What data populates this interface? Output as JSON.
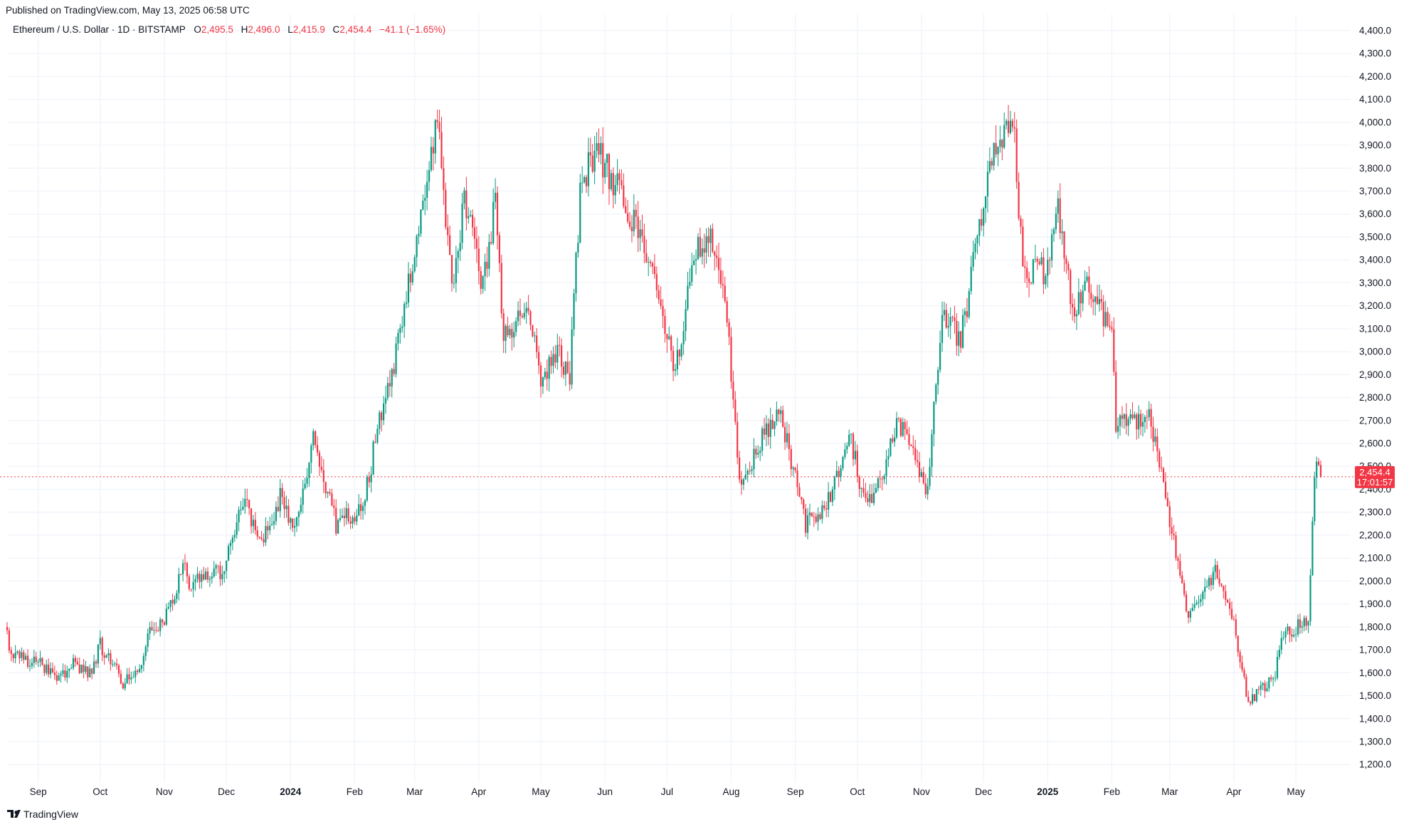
{
  "published": "Published on TradingView.com, May 13, 2025 06:58 UTC",
  "brand": "TradingView",
  "brand_icon": "tradingview-logo-icon",
  "colors": {
    "up": "#089981",
    "down": "#f23645",
    "grid": "#f0f3fa",
    "text": "#131722",
    "price_line": "#f23645"
  },
  "header": {
    "symbol": "Ethereum / U.S. Dollar · 1D · BITSTAMP",
    "o_label": "O",
    "o_value": "2,495.5",
    "h_label": "H",
    "h_value": "2,496.0",
    "l_label": "L",
    "l_value": "2,415.9",
    "c_label": "C",
    "c_value": "2,454.4",
    "change": "−41.1 (−1.65%)"
  },
  "price_badge": {
    "price": "2,454.4",
    "countdown": "17:01:57"
  },
  "chart_data": {
    "type": "candlestick",
    "symbol": "ETHUSD",
    "exchange": "BITSTAMP",
    "interval": "1D",
    "ylim": [
      1120,
      4440
    ],
    "yticks": [
      "1,200.0",
      "1,300.0",
      "1,400.0",
      "1,500.0",
      "1,600.0",
      "1,700.0",
      "1,800.0",
      "1,900.0",
      "2,000.0",
      "2,100.0",
      "2,200.0",
      "2,300.0",
      "2,400.0",
      "2,500.0",
      "2,600.0",
      "2,700.0",
      "2,800.0",
      "2,900.0",
      "3,000.0",
      "3,100.0",
      "3,200.0",
      "3,300.0",
      "3,400.0",
      "3,500.0",
      "3,600.0",
      "3,700.0",
      "3,800.0",
      "3,900.0",
      "4,000.0",
      "4,100.0",
      "4,200.0",
      "4,300.0",
      "4,400.0"
    ],
    "xticks": [
      {
        "label": "Sep",
        "date": "2023-09-01"
      },
      {
        "label": "Oct",
        "date": "2023-10-01"
      },
      {
        "label": "Nov",
        "date": "2023-11-01"
      },
      {
        "label": "Dec",
        "date": "2023-12-01"
      },
      {
        "label": "2024",
        "date": "2024-01-01",
        "bold": true
      },
      {
        "label": "Feb",
        "date": "2024-02-01"
      },
      {
        "label": "Mar",
        "date": "2024-03-01"
      },
      {
        "label": "Apr",
        "date": "2024-04-01"
      },
      {
        "label": "May",
        "date": "2024-05-01"
      },
      {
        "label": "Jun",
        "date": "2024-06-01"
      },
      {
        "label": "Jul",
        "date": "2024-07-01"
      },
      {
        "label": "Aug",
        "date": "2024-08-01"
      },
      {
        "label": "Sep",
        "date": "2024-09-01"
      },
      {
        "label": "Oct",
        "date": "2024-10-01"
      },
      {
        "label": "Nov",
        "date": "2024-11-01"
      },
      {
        "label": "Dec",
        "date": "2024-12-01"
      },
      {
        "label": "2025",
        "date": "2025-01-01",
        "bold": true
      },
      {
        "label": "Feb",
        "date": "2025-02-01"
      },
      {
        "label": "Mar",
        "date": "2025-03-01"
      },
      {
        "label": "Apr",
        "date": "2025-04-01"
      },
      {
        "label": "May",
        "date": "2025-05-01"
      }
    ],
    "last_price": 2454.4,
    "grid": true,
    "path_points": [
      [
        "2023-08-17",
        1800
      ],
      [
        "2023-08-18",
        1690
      ],
      [
        "2023-09-01",
        1640
      ],
      [
        "2023-09-11",
        1560
      ],
      [
        "2023-09-18",
        1640
      ],
      [
        "2023-09-26",
        1590
      ],
      [
        "2023-10-01",
        1720
      ],
      [
        "2023-10-12",
        1560
      ],
      [
        "2023-10-20",
        1620
      ],
      [
        "2023-10-24",
        1790
      ],
      [
        "2023-11-01",
        1820
      ],
      [
        "2023-11-10",
        2060
      ],
      [
        "2023-11-14",
        1980
      ],
      [
        "2023-11-30",
        2050
      ],
      [
        "2023-12-09",
        2350
      ],
      [
        "2023-12-18",
        2180
      ],
      [
        "2023-12-28",
        2380
      ],
      [
        "2024-01-03",
        2200
      ],
      [
        "2024-01-12",
        2620
      ],
      [
        "2024-01-23",
        2250
      ],
      [
        "2024-02-05",
        2320
      ],
      [
        "2024-02-13",
        2700
      ],
      [
        "2024-02-20",
        2960
      ],
      [
        "2024-02-29",
        3380
      ],
      [
        "2024-03-12",
        4000
      ],
      [
        "2024-03-19",
        3250
      ],
      [
        "2024-03-25",
        3650
      ],
      [
        "2024-04-03",
        3300
      ],
      [
        "2024-04-09",
        3650
      ],
      [
        "2024-04-13",
        3050
      ],
      [
        "2024-04-23",
        3200
      ],
      [
        "2024-05-01",
        2900
      ],
      [
        "2024-05-10",
        3000
      ],
      [
        "2024-05-15",
        2880
      ],
      [
        "2024-05-20",
        3700
      ],
      [
        "2024-05-27",
        3880
      ],
      [
        "2024-06-03",
        3780
      ],
      [
        "2024-06-10",
        3650
      ],
      [
        "2024-06-19",
        3500
      ],
      [
        "2024-06-24",
        3350
      ],
      [
        "2024-07-05",
        2900
      ],
      [
        "2024-07-15",
        3450
      ],
      [
        "2024-07-22",
        3480
      ],
      [
        "2024-07-29",
        3250
      ],
      [
        "2024-08-05",
        2400
      ],
      [
        "2024-08-15",
        2600
      ],
      [
        "2024-08-24",
        2750
      ],
      [
        "2024-09-06",
        2250
      ],
      [
        "2024-09-17",
        2350
      ],
      [
        "2024-09-27",
        2650
      ],
      [
        "2024-10-03",
        2400
      ],
      [
        "2024-10-10",
        2380
      ],
      [
        "2024-10-21",
        2700
      ],
      [
        "2024-11-04",
        2400
      ],
      [
        "2024-11-11",
        3200
      ],
      [
        "2024-11-20",
        3050
      ],
      [
        "2024-12-01",
        3650
      ],
      [
        "2024-12-08",
        3950
      ],
      [
        "2024-12-16",
        3950
      ],
      [
        "2024-12-20",
        3350
      ],
      [
        "2025-01-01",
        3350
      ],
      [
        "2025-01-06",
        3650
      ],
      [
        "2025-01-13",
        3150
      ],
      [
        "2025-01-20",
        3300
      ],
      [
        "2025-02-01",
        3100
      ],
      [
        "2025-02-03",
        2700
      ],
      [
        "2025-02-20",
        2700
      ],
      [
        "2025-03-01",
        2250
      ],
      [
        "2025-03-10",
        1850
      ],
      [
        "2025-03-24",
        2050
      ],
      [
        "2025-04-01",
        1800
      ],
      [
        "2025-04-08",
        1470
      ],
      [
        "2025-04-21",
        1600
      ],
      [
        "2025-04-25",
        1780
      ],
      [
        "2025-05-07",
        1810
      ],
      [
        "2025-05-10",
        2500
      ],
      [
        "2025-05-13",
        2454.4
      ]
    ]
  }
}
